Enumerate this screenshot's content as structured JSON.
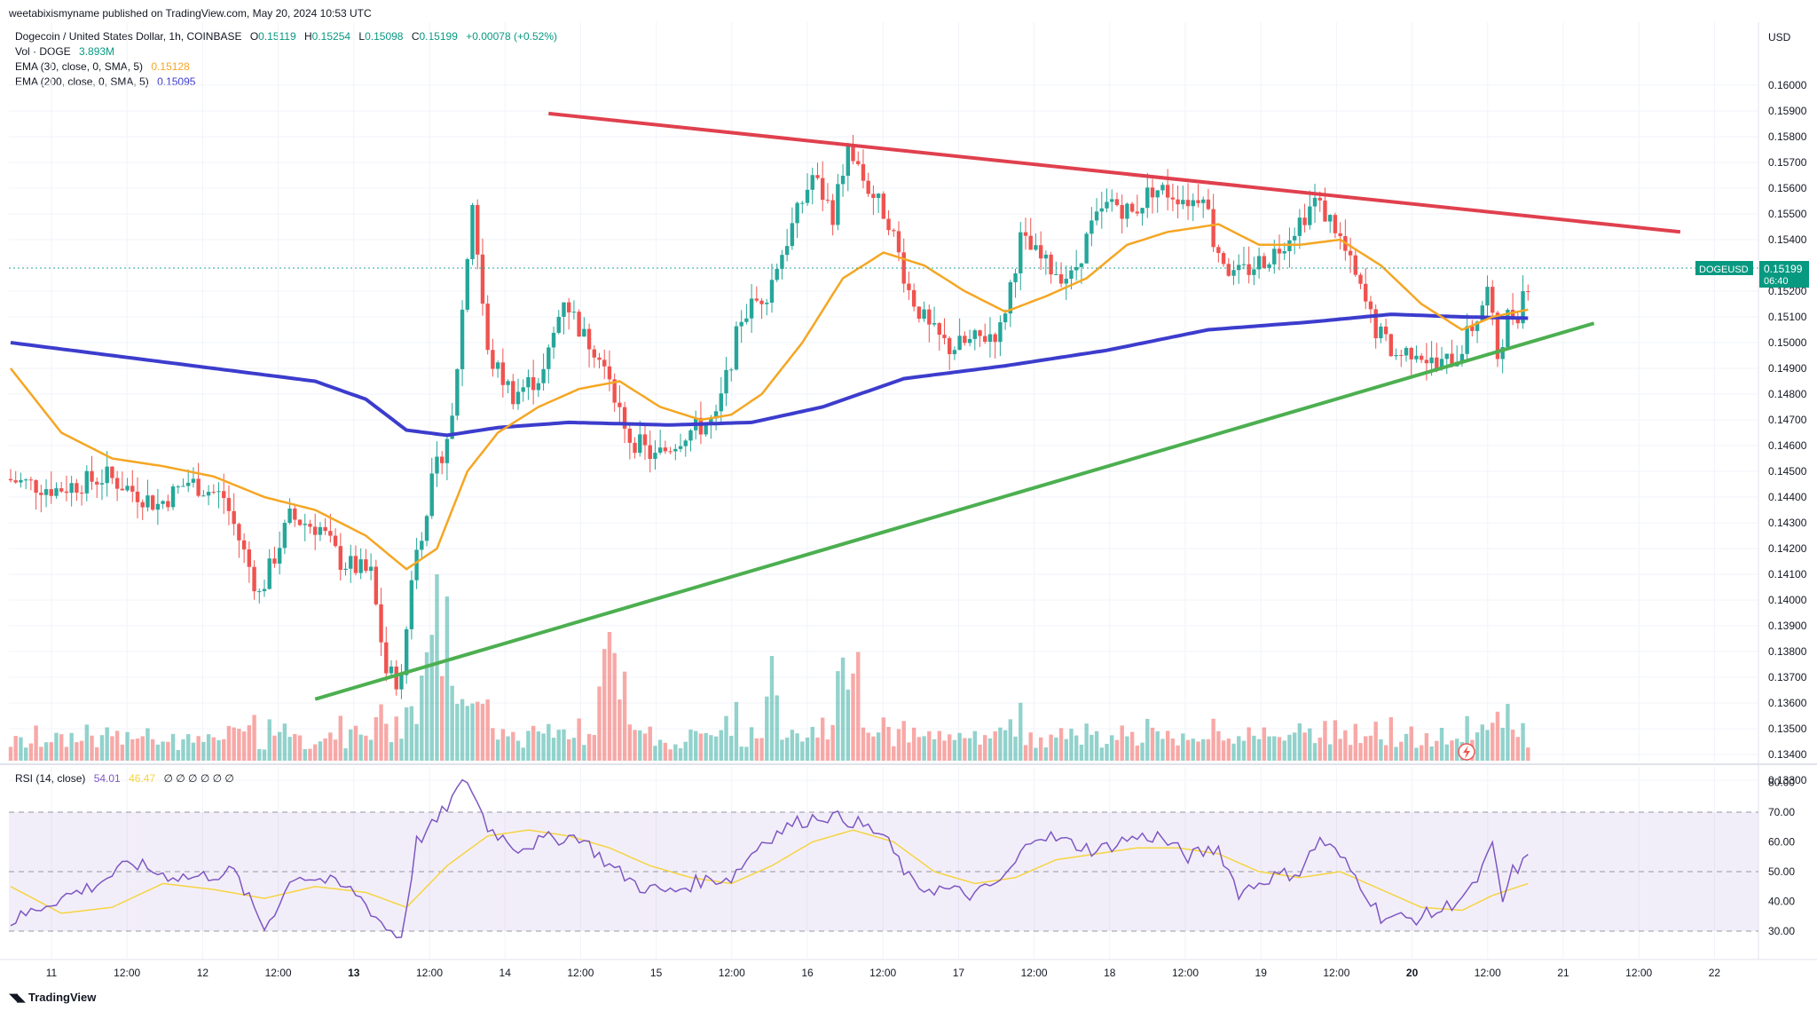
{
  "published_line": "weetabixismyname published on TradingView.com, May 20, 2024 10:53 UTC",
  "legend": {
    "symbol": "Dogecoin / United States Dollar, 1h, COINBASE",
    "o_label": "O",
    "o_val": "0.15119",
    "h_label": "H",
    "h_val": "0.15254",
    "l_label": "L",
    "l_val": "0.15098",
    "c_label": "C",
    "c_val": "0.15199",
    "change": "+0.00078 (+0.52%)",
    "vol_label": "Vol · DOGE",
    "vol_val": "3.893M",
    "ema30_label": "EMA (30, close, 0, SMA, 5)",
    "ema30_val": "0.15128",
    "ema200_label": "EMA (200, close, 0, SMA, 5)",
    "ema200_val": "0.15095"
  },
  "rsi_legend": {
    "label": "RSI (14, close)",
    "val1": "54.01",
    "val2": "46.47",
    "extra": "∅ ∅ ∅ ∅ ∅ ∅"
  },
  "currency": "USD",
  "price_tag": {
    "symbol": "DOGEUSD",
    "price": "0.15199",
    "countdown": "06:40"
  },
  "brand": "TradingView",
  "colors": {
    "up": "#26a69a",
    "down": "#ef5350",
    "ema30": "#f5a623",
    "ema200": "#3c3ccd",
    "resistance": "#e0404e",
    "support": "#4caf50",
    "rsi": "#7e57c2",
    "rsi_ma": "#f5d442"
  },
  "chart_data": [
    {
      "type": "candlestick",
      "title": "Dogecoin / United States Dollar, 1h, COINBASE",
      "ylim": [
        0.133,
        0.1605
      ],
      "y_ticks": [
        "0.16000",
        "0.15900",
        "0.15800",
        "0.15700",
        "0.15600",
        "0.15500",
        "0.15400",
        "0.15300",
        "0.15200",
        "0.15100",
        "0.15000",
        "0.14900",
        "0.14800",
        "0.14700",
        "0.14600",
        "0.14500",
        "0.14400",
        "0.14300",
        "0.14200",
        "0.14100",
        "0.14000",
        "0.13900",
        "0.13800",
        "0.13700",
        "0.13600",
        "0.13500",
        "0.13400",
        "0.13300"
      ],
      "x_ticks": [
        "11",
        "12:00",
        "12",
        "12:00",
        "13",
        "12:00",
        "14",
        "12:00",
        "15",
        "12:00",
        "16",
        "12:00",
        "17",
        "12:00",
        "18",
        "12:00",
        "19",
        "12:00",
        "20",
        "12:00",
        "21",
        "12:00",
        "22"
      ],
      "bold_ticks": [
        "13",
        "20"
      ],
      "key_prices": [
        {
          "t": 0,
          "p": 0.1447
        },
        {
          "t": 10,
          "p": 0.1443
        },
        {
          "t": 20,
          "p": 0.1448
        },
        {
          "t": 30,
          "p": 0.1437
        },
        {
          "t": 36,
          "p": 0.1446
        },
        {
          "t": 43,
          "p": 0.144
        },
        {
          "t": 50,
          "p": 0.1402
        },
        {
          "t": 56,
          "p": 0.1432
        },
        {
          "t": 62,
          "p": 0.1428
        },
        {
          "t": 66,
          "p": 0.1415
        },
        {
          "t": 72,
          "p": 0.141
        },
        {
          "t": 75,
          "p": 0.1372
        },
        {
          "t": 78,
          "p": 0.1368
        },
        {
          "t": 80,
          "p": 0.141
        },
        {
          "t": 84,
          "p": 0.1445
        },
        {
          "t": 88,
          "p": 0.147
        },
        {
          "t": 92,
          "p": 0.1555
        },
        {
          "t": 95,
          "p": 0.1495
        },
        {
          "t": 100,
          "p": 0.148
        },
        {
          "t": 106,
          "p": 0.1488
        },
        {
          "t": 110,
          "p": 0.1518
        },
        {
          "t": 114,
          "p": 0.1502
        },
        {
          "t": 118,
          "p": 0.1495
        },
        {
          "t": 122,
          "p": 0.1465
        },
        {
          "t": 128,
          "p": 0.1455
        },
        {
          "t": 134,
          "p": 0.1465
        },
        {
          "t": 140,
          "p": 0.147
        },
        {
          "t": 145,
          "p": 0.151
        },
        {
          "t": 150,
          "p": 0.152
        },
        {
          "t": 155,
          "p": 0.1545
        },
        {
          "t": 159,
          "p": 0.1565
        },
        {
          "t": 163,
          "p": 0.155
        },
        {
          "t": 166,
          "p": 0.1575
        },
        {
          "t": 170,
          "p": 0.156
        },
        {
          "t": 174,
          "p": 0.1548
        },
        {
          "t": 178,
          "p": 0.152
        },
        {
          "t": 182,
          "p": 0.1505
        },
        {
          "t": 186,
          "p": 0.1498
        },
        {
          "t": 190,
          "p": 0.15
        },
        {
          "t": 196,
          "p": 0.1505
        },
        {
          "t": 200,
          "p": 0.154
        },
        {
          "t": 205,
          "p": 0.153
        },
        {
          "t": 210,
          "p": 0.1525
        },
        {
          "t": 214,
          "p": 0.1545
        },
        {
          "t": 218,
          "p": 0.1555
        },
        {
          "t": 222,
          "p": 0.155
        },
        {
          "t": 226,
          "p": 0.156
        },
        {
          "t": 230,
          "p": 0.1558
        },
        {
          "t": 234,
          "p": 0.1555
        },
        {
          "t": 236,
          "p": 0.156
        },
        {
          "t": 238,
          "p": 0.154
        },
        {
          "t": 242,
          "p": 0.1525
        },
        {
          "t": 246,
          "p": 0.153
        },
        {
          "t": 250,
          "p": 0.1535
        },
        {
          "t": 254,
          "p": 0.1545
        },
        {
          "t": 258,
          "p": 0.1555
        },
        {
          "t": 262,
          "p": 0.1545
        },
        {
          "t": 266,
          "p": 0.1525
        },
        {
          "t": 270,
          "p": 0.1505
        },
        {
          "t": 274,
          "p": 0.1495
        },
        {
          "t": 278,
          "p": 0.1498
        },
        {
          "t": 282,
          "p": 0.149
        },
        {
          "t": 286,
          "p": 0.1495
        },
        {
          "t": 290,
          "p": 0.151
        },
        {
          "t": 292,
          "p": 0.152
        },
        {
          "t": 294,
          "p": 0.1495
        },
        {
          "t": 296,
          "p": 0.151
        },
        {
          "t": 298,
          "p": 0.1512
        },
        {
          "t": 299,
          "p": 0.15199
        }
      ],
      "ema30": [
        {
          "t": 0,
          "p": 0.149
        },
        {
          "t": 10,
          "p": 0.1465
        },
        {
          "t": 20,
          "p": 0.1455
        },
        {
          "t": 30,
          "p": 0.1452
        },
        {
          "t": 40,
          "p": 0.1448
        },
        {
          "t": 50,
          "p": 0.144
        },
        {
          "t": 60,
          "p": 0.1435
        },
        {
          "t": 70,
          "p": 0.1425
        },
        {
          "t": 78,
          "p": 0.1412
        },
        {
          "t": 84,
          "p": 0.142
        },
        {
          "t": 90,
          "p": 0.145
        },
        {
          "t": 96,
          "p": 0.1465
        },
        {
          "t": 104,
          "p": 0.1475
        },
        {
          "t": 112,
          "p": 0.1482
        },
        {
          "t": 120,
          "p": 0.1485
        },
        {
          "t": 128,
          "p": 0.1475
        },
        {
          "t": 136,
          "p": 0.147
        },
        {
          "t": 142,
          "p": 0.1472
        },
        {
          "t": 148,
          "p": 0.148
        },
        {
          "t": 156,
          "p": 0.15
        },
        {
          "t": 164,
          "p": 0.1525
        },
        {
          "t": 172,
          "p": 0.1535
        },
        {
          "t": 180,
          "p": 0.153
        },
        {
          "t": 188,
          "p": 0.152
        },
        {
          "t": 196,
          "p": 0.1512
        },
        {
          "t": 204,
          "p": 0.1518
        },
        {
          "t": 212,
          "p": 0.1525
        },
        {
          "t": 220,
          "p": 0.1538
        },
        {
          "t": 228,
          "p": 0.1543
        },
        {
          "t": 238,
          "p": 0.1546
        },
        {
          "t": 246,
          "p": 0.1538
        },
        {
          "t": 254,
          "p": 0.1538
        },
        {
          "t": 262,
          "p": 0.154
        },
        {
          "t": 270,
          "p": 0.153
        },
        {
          "t": 278,
          "p": 0.1515
        },
        {
          "t": 286,
          "p": 0.1505
        },
        {
          "t": 292,
          "p": 0.151
        },
        {
          "t": 299,
          "p": 0.15128
        }
      ],
      "ema200": [
        {
          "t": 0,
          "p": 0.15
        },
        {
          "t": 20,
          "p": 0.1495
        },
        {
          "t": 40,
          "p": 0.149
        },
        {
          "t": 60,
          "p": 0.1485
        },
        {
          "t": 70,
          "p": 0.1478
        },
        {
          "t": 78,
          "p": 0.1466
        },
        {
          "t": 86,
          "p": 0.1464
        },
        {
          "t": 96,
          "p": 0.1467
        },
        {
          "t": 110,
          "p": 0.1469
        },
        {
          "t": 130,
          "p": 0.1468
        },
        {
          "t": 146,
          "p": 0.1469
        },
        {
          "t": 160,
          "p": 0.1475
        },
        {
          "t": 176,
          "p": 0.1486
        },
        {
          "t": 196,
          "p": 0.1491
        },
        {
          "t": 216,
          "p": 0.1497
        },
        {
          "t": 236,
          "p": 0.1505
        },
        {
          "t": 256,
          "p": 0.1508
        },
        {
          "t": 272,
          "p": 0.1511
        },
        {
          "t": 286,
          "p": 0.151
        },
        {
          "t": 299,
          "p": 0.15095
        }
      ],
      "trendlines": [
        {
          "name": "resistance",
          "from": {
            "t": 106,
            "p": 0.1589
          },
          "to": {
            "t": 329,
            "p": 0.1543
          }
        },
        {
          "name": "support",
          "from": {
            "t": 60,
            "p": 0.13615
          },
          "to": {
            "t": 312,
            "p": 0.15075
          }
        }
      ],
      "volume_profile_note": "spikes near candles 82-86, 118, 150, 165"
    },
    {
      "type": "line",
      "title": "RSI (14, close)",
      "ylim": [
        25,
        82
      ],
      "y_ticks": [
        "80.00",
        "70.00",
        "60.00",
        "50.00",
        "40.00",
        "30.00"
      ],
      "band": [
        30,
        70
      ],
      "midline": 50,
      "rsi_keys": [
        {
          "t": 0,
          "v": 33
        },
        {
          "t": 8,
          "v": 40
        },
        {
          "t": 16,
          "v": 45
        },
        {
          "t": 24,
          "v": 53
        },
        {
          "t": 30,
          "v": 49
        },
        {
          "t": 36,
          "v": 48
        },
        {
          "t": 44,
          "v": 50
        },
        {
          "t": 50,
          "v": 31
        },
        {
          "t": 56,
          "v": 49
        },
        {
          "t": 62,
          "v": 47
        },
        {
          "t": 68,
          "v": 43
        },
        {
          "t": 74,
          "v": 31
        },
        {
          "t": 77,
          "v": 28
        },
        {
          "t": 80,
          "v": 60
        },
        {
          "t": 84,
          "v": 67
        },
        {
          "t": 88,
          "v": 77
        },
        {
          "t": 90,
          "v": 81
        },
        {
          "t": 94,
          "v": 65
        },
        {
          "t": 100,
          "v": 58
        },
        {
          "t": 106,
          "v": 61
        },
        {
          "t": 112,
          "v": 62
        },
        {
          "t": 118,
          "v": 52
        },
        {
          "t": 124,
          "v": 45
        },
        {
          "t": 130,
          "v": 43
        },
        {
          "t": 136,
          "v": 47
        },
        {
          "t": 142,
          "v": 48
        },
        {
          "t": 148,
          "v": 60
        },
        {
          "t": 154,
          "v": 66
        },
        {
          "t": 160,
          "v": 69
        },
        {
          "t": 166,
          "v": 67
        },
        {
          "t": 172,
          "v": 62
        },
        {
          "t": 178,
          "v": 45
        },
        {
          "t": 184,
          "v": 44
        },
        {
          "t": 190,
          "v": 42
        },
        {
          "t": 196,
          "v": 48
        },
        {
          "t": 202,
          "v": 63
        },
        {
          "t": 208,
          "v": 60
        },
        {
          "t": 214,
          "v": 57
        },
        {
          "t": 220,
          "v": 61
        },
        {
          "t": 226,
          "v": 62
        },
        {
          "t": 232,
          "v": 55
        },
        {
          "t": 238,
          "v": 58
        },
        {
          "t": 242,
          "v": 43
        },
        {
          "t": 248,
          "v": 48
        },
        {
          "t": 254,
          "v": 50
        },
        {
          "t": 258,
          "v": 61
        },
        {
          "t": 262,
          "v": 55
        },
        {
          "t": 266,
          "v": 46
        },
        {
          "t": 270,
          "v": 35
        },
        {
          "t": 276,
          "v": 34
        },
        {
          "t": 282,
          "v": 37
        },
        {
          "t": 288,
          "v": 44
        },
        {
          "t": 292,
          "v": 58
        },
        {
          "t": 294,
          "v": 40
        },
        {
          "t": 296,
          "v": 50
        },
        {
          "t": 299,
          "v": 54
        }
      ],
      "ma_keys": [
        {
          "t": 0,
          "v": 45
        },
        {
          "t": 10,
          "v": 36
        },
        {
          "t": 20,
          "v": 38
        },
        {
          "t": 30,
          "v": 46
        },
        {
          "t": 40,
          "v": 44
        },
        {
          "t": 50,
          "v": 41
        },
        {
          "t": 60,
          "v": 45
        },
        {
          "t": 70,
          "v": 43
        },
        {
          "t": 78,
          "v": 38
        },
        {
          "t": 86,
          "v": 52
        },
        {
          "t": 94,
          "v": 62
        },
        {
          "t": 102,
          "v": 64
        },
        {
          "t": 110,
          "v": 62
        },
        {
          "t": 118,
          "v": 58
        },
        {
          "t": 126,
          "v": 52
        },
        {
          "t": 134,
          "v": 48
        },
        {
          "t": 142,
          "v": 46
        },
        {
          "t": 150,
          "v": 52
        },
        {
          "t": 158,
          "v": 60
        },
        {
          "t": 166,
          "v": 64
        },
        {
          "t": 174,
          "v": 60
        },
        {
          "t": 182,
          "v": 50
        },
        {
          "t": 190,
          "v": 46
        },
        {
          "t": 198,
          "v": 48
        },
        {
          "t": 206,
          "v": 54
        },
        {
          "t": 214,
          "v": 56
        },
        {
          "t": 222,
          "v": 58
        },
        {
          "t": 230,
          "v": 58
        },
        {
          "t": 238,
          "v": 56
        },
        {
          "t": 246,
          "v": 50
        },
        {
          "t": 254,
          "v": 48
        },
        {
          "t": 262,
          "v": 50
        },
        {
          "t": 270,
          "v": 44
        },
        {
          "t": 278,
          "v": 38
        },
        {
          "t": 286,
          "v": 37
        },
        {
          "t": 292,
          "v": 42
        },
        {
          "t": 299,
          "v": 46
        }
      ]
    }
  ]
}
